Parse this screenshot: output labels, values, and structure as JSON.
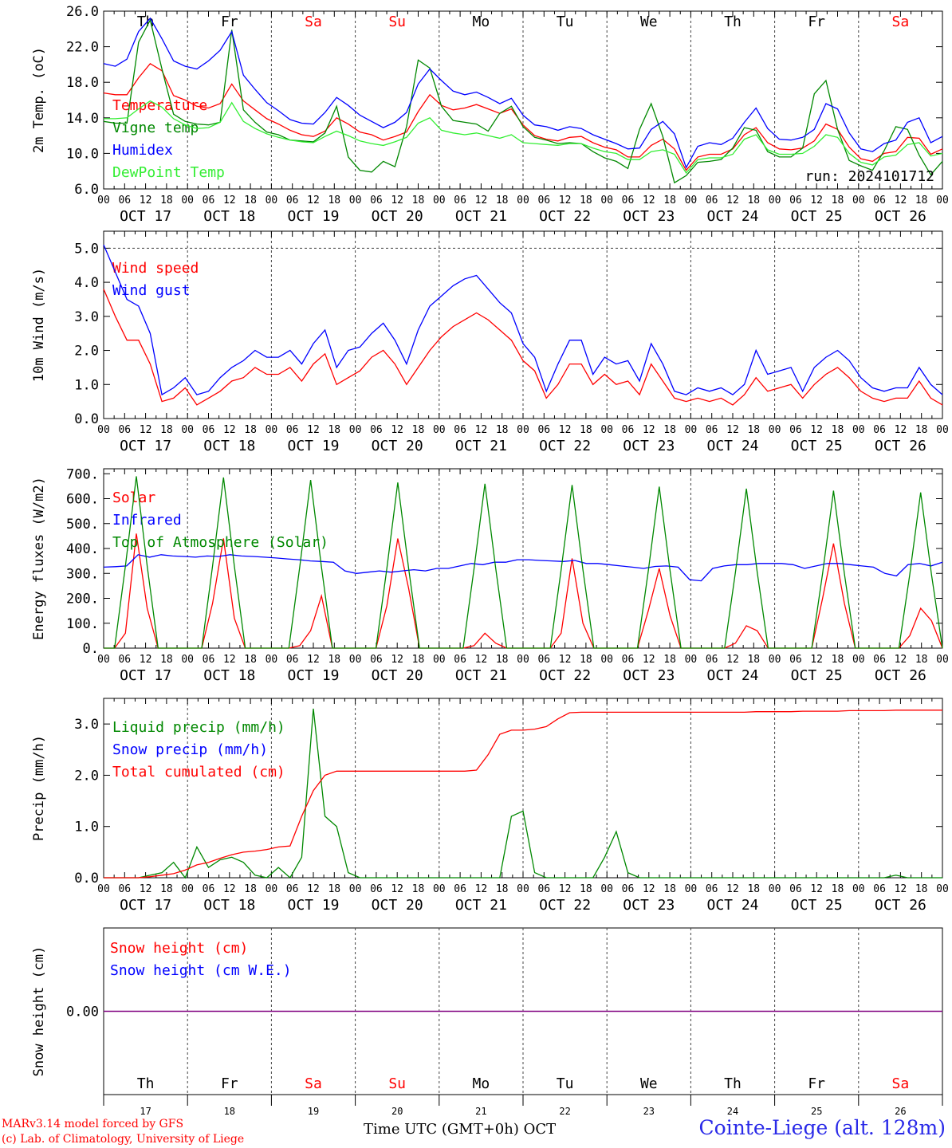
{
  "chart_data": [
    {
      "type": "line",
      "ylabel": "2m Temp. (oC)",
      "ylim": [
        6,
        26
      ],
      "yticks": [
        "26.0",
        "22.0",
        "18.0",
        "14.0",
        "10.0",
        "6.0"
      ],
      "day_names": [
        "Th",
        "Fr",
        "Sa",
        "Su",
        "Mo",
        "Tu",
        "We",
        "Th",
        "Fr",
        "Sa"
      ],
      "weekend_days": [
        2,
        3,
        9
      ],
      "x_hour_ticks": [
        "00",
        "06",
        "12",
        "18"
      ],
      "date_labels": [
        "OCT 17",
        "OCT 18",
        "OCT 19",
        "OCT 20",
        "OCT 21",
        "OCT 22",
        "OCT 23",
        "OCT 24",
        "OCT 25",
        "OCT 26"
      ],
      "annotation": "run: 2024101712",
      "x_step_hours": 3,
      "series": [
        {
          "name": "Temperature",
          "color": "#ff0000",
          "values": [
            16.8,
            16.6,
            16.6,
            18.5,
            20.1,
            19.3,
            16.5,
            16.0,
            15.3,
            15.1,
            15.6,
            17.8,
            15.9,
            14.9,
            13.9,
            13.3,
            12.6,
            12.1,
            11.9,
            12.5,
            14.0,
            13.3,
            12.4,
            12.1,
            11.5,
            11.9,
            12.4,
            14.7,
            16.6,
            15.4,
            14.9,
            15.1,
            15.5,
            15.0,
            14.5,
            15.0,
            13.2,
            12.0,
            11.6,
            11.4,
            11.8,
            11.9,
            11.2,
            10.7,
            10.4,
            9.6,
            9.6,
            10.9,
            11.6,
            10.5,
            8.1,
            9.6,
            9.9,
            9.9,
            10.5,
            12.1,
            12.9,
            11.2,
            10.5,
            10.4,
            10.6,
            11.4,
            13.3,
            12.7,
            10.7,
            9.4,
            9.1,
            10.0,
            10.2,
            11.8,
            11.7,
            9.9,
            10.5
          ]
        },
        {
          "name": "Vigne temp",
          "color": "#008800",
          "values": [
            13.6,
            13.4,
            13.4,
            22.5,
            25.0,
            19.5,
            14.4,
            13.6,
            13.3,
            13.2,
            13.5,
            23.9,
            14.9,
            13.5,
            12.4,
            12.1,
            11.5,
            11.4,
            11.3,
            12.3,
            15.3,
            9.6,
            8.1,
            7.9,
            9.1,
            8.5,
            13.0,
            20.5,
            19.6,
            15.3,
            13.7,
            13.5,
            13.3,
            12.5,
            14.5,
            15.3,
            13.0,
            11.8,
            11.5,
            11.1,
            11.2,
            11.1,
            10.2,
            9.5,
            9.1,
            8.3,
            12.7,
            15.6,
            11.9,
            6.7,
            7.5,
            9.0,
            9.1,
            9.3,
            10.6,
            12.9,
            12.6,
            10.2,
            9.6,
            9.6,
            10.6,
            16.7,
            18.2,
            12.7,
            9.2,
            8.6,
            8.1,
            10.3,
            13.0,
            12.7,
            9.8,
            7.6,
            9.1
          ]
        },
        {
          "name": "Humidex",
          "color": "#0000ff",
          "values": [
            20.1,
            19.8,
            20.6,
            23.7,
            25.2,
            22.9,
            20.4,
            19.8,
            19.5,
            20.4,
            21.6,
            23.7,
            18.8,
            17.2,
            15.7,
            14.8,
            13.8,
            13.4,
            13.3,
            14.6,
            16.3,
            15.4,
            14.3,
            13.6,
            12.9,
            13.5,
            14.6,
            17.8,
            19.5,
            18.2,
            17.0,
            16.6,
            16.9,
            16.3,
            15.6,
            16.2,
            14.3,
            13.2,
            13.0,
            12.6,
            13.0,
            12.8,
            12.1,
            11.6,
            11.1,
            10.5,
            10.6,
            12.7,
            13.6,
            12.2,
            8.4,
            10.8,
            11.2,
            11.0,
            11.7,
            13.5,
            15.1,
            12.8,
            11.6,
            11.5,
            11.8,
            12.7,
            15.6,
            15.0,
            12.3,
            10.5,
            10.2,
            11.1,
            11.5,
            13.5,
            14.0,
            11.2,
            11.9
          ]
        },
        {
          "name": "DewPoint Temp",
          "color": "#33ee33",
          "values": [
            13.9,
            13.9,
            14.0,
            15.0,
            15.9,
            15.2,
            13.9,
            13.2,
            12.8,
            12.9,
            13.5,
            15.7,
            13.6,
            12.8,
            12.2,
            11.8,
            11.5,
            11.3,
            11.2,
            11.9,
            12.5,
            12.0,
            11.4,
            11.1,
            10.9,
            11.3,
            11.8,
            13.4,
            14.0,
            12.6,
            12.3,
            12.1,
            12.3,
            12.0,
            11.7,
            12.1,
            11.2,
            11.1,
            11.0,
            10.9,
            11.1,
            11.1,
            10.6,
            10.2,
            10.0,
            9.3,
            9.3,
            10.2,
            10.4,
            9.9,
            7.8,
            9.3,
            9.5,
            9.5,
            9.9,
            11.6,
            12.1,
            10.4,
            9.9,
            9.9,
            10.0,
            10.8,
            12.1,
            11.8,
            10.0,
            9.0,
            8.7,
            9.6,
            9.8,
            11.0,
            11.2,
            9.7,
            10.0
          ]
        }
      ]
    },
    {
      "type": "line",
      "ylabel": "10m Wind (m/s)",
      "ylim": [
        0,
        5.5
      ],
      "yticks": [
        "5.0",
        "4.0",
        "3.0",
        "2.0",
        "1.0",
        "0.0"
      ],
      "x_hour_ticks": [
        "00",
        "06",
        "12",
        "18"
      ],
      "date_labels": [
        "OCT 17",
        "OCT 18",
        "OCT 19",
        "OCT 20",
        "OCT 21",
        "OCT 22",
        "OCT 23",
        "OCT 24",
        "OCT 25",
        "OCT 26"
      ],
      "x_step_hours": 3,
      "series": [
        {
          "name": "Wind speed",
          "color": "#ff0000",
          "values": [
            3.8,
            3.0,
            2.3,
            2.3,
            1.6,
            0.5,
            0.6,
            0.9,
            0.4,
            0.6,
            0.8,
            1.1,
            1.2,
            1.5,
            1.3,
            1.3,
            1.5,
            1.1,
            1.6,
            1.9,
            1.0,
            1.2,
            1.4,
            1.8,
            2.0,
            1.6,
            1.0,
            1.5,
            2.0,
            2.4,
            2.7,
            2.9,
            3.1,
            2.9,
            2.6,
            2.3,
            1.7,
            1.4,
            0.6,
            1.0,
            1.6,
            1.6,
            1.0,
            1.3,
            1.0,
            1.1,
            0.7,
            1.6,
            1.1,
            0.6,
            0.5,
            0.6,
            0.5,
            0.6,
            0.4,
            0.7,
            1.2,
            0.8,
            0.9,
            1.0,
            0.6,
            1.0,
            1.3,
            1.5,
            1.2,
            0.8,
            0.6,
            0.5,
            0.6,
            0.6,
            1.1,
            0.6,
            0.4
          ]
        },
        {
          "name": "Wind gust",
          "color": "#0000ff",
          "values": [
            5.1,
            4.3,
            3.5,
            3.3,
            2.5,
            0.7,
            0.9,
            1.2,
            0.7,
            0.8,
            1.2,
            1.5,
            1.7,
            2.0,
            1.8,
            1.8,
            2.0,
            1.6,
            2.2,
            2.6,
            1.5,
            2.0,
            2.1,
            2.5,
            2.8,
            2.3,
            1.6,
            2.6,
            3.3,
            3.6,
            3.9,
            4.1,
            4.2,
            3.8,
            3.4,
            3.1,
            2.2,
            1.8,
            0.8,
            1.6,
            2.3,
            2.3,
            1.3,
            1.8,
            1.6,
            1.7,
            1.1,
            2.2,
            1.6,
            0.8,
            0.7,
            0.9,
            0.8,
            0.9,
            0.7,
            1.0,
            2.0,
            1.3,
            1.4,
            1.5,
            0.8,
            1.5,
            1.8,
            2.0,
            1.7,
            1.2,
            0.9,
            0.8,
            0.9,
            0.9,
            1.5,
            1.0,
            0.7
          ]
        }
      ]
    },
    {
      "type": "line",
      "ylabel": "Energy fluxes (W/m2)",
      "ylim": [
        0,
        720
      ],
      "yticks": [
        "700.",
        "600.",
        "500.",
        "400.",
        "300.",
        "200.",
        "100.",
        "0."
      ],
      "x_hour_ticks": [
        "00",
        "06",
        "12",
        "18"
      ],
      "date_labels": [
        "OCT 17",
        "OCT 18",
        "OCT 19",
        "OCT 20",
        "OCT 21",
        "OCT 22",
        "OCT 23",
        "OCT 24",
        "OCT 25",
        "OCT 26"
      ],
      "x_step_hours": 3,
      "series": [
        {
          "name": "Solar",
          "color": "#ff0000",
          "values": [
            0,
            0,
            60,
            460,
            160,
            0,
            0,
            0,
            0,
            0,
            180,
            440,
            120,
            0,
            0,
            0,
            0,
            0,
            10,
            70,
            210,
            0,
            0,
            0,
            0,
            0,
            170,
            440,
            240,
            0,
            0,
            0,
            0,
            0,
            10,
            60,
            20,
            0,
            0,
            0,
            0,
            0,
            60,
            360,
            100,
            0,
            0,
            0,
            0,
            0,
            150,
            320,
            130,
            0,
            0,
            0,
            0,
            0,
            20,
            90,
            70,
            0,
            0,
            0,
            0,
            0,
            200,
            420,
            180,
            0,
            0,
            0,
            0,
            0,
            50,
            160,
            110,
            0
          ]
        },
        {
          "name": "Infrared",
          "color": "#0000ff",
          "values": [
            325,
            327,
            330,
            375,
            365,
            375,
            370,
            368,
            365,
            370,
            368,
            375,
            370,
            368,
            365,
            362,
            358,
            355,
            350,
            348,
            345,
            310,
            300,
            305,
            310,
            305,
            310,
            315,
            310,
            320,
            320,
            330,
            340,
            335,
            345,
            345,
            355,
            355,
            352,
            350,
            348,
            352,
            340,
            340,
            335,
            330,
            325,
            320,
            328,
            330,
            325,
            275,
            270,
            320,
            330,
            335,
            335,
            340,
            340,
            340,
            335,
            320,
            330,
            340,
            340,
            335,
            330,
            325,
            300,
            290,
            335,
            340,
            330,
            345
          ]
        },
        {
          "name": "Top of Atmosphere (Solar)",
          "color": "#008800",
          "values": [
            0,
            0,
            330,
            690,
            330,
            0,
            0,
            0,
            0,
            0,
            330,
            685,
            330,
            0,
            0,
            0,
            0,
            0,
            325,
            675,
            325,
            0,
            0,
            0,
            0,
            0,
            320,
            665,
            320,
            0,
            0,
            0,
            0,
            0,
            318,
            660,
            318,
            0,
            0,
            0,
            0,
            0,
            315,
            655,
            315,
            0,
            0,
            0,
            0,
            0,
            310,
            648,
            310,
            0,
            0,
            0,
            0,
            0,
            305,
            640,
            305,
            0,
            0,
            0,
            0,
            0,
            300,
            632,
            300,
            0,
            0,
            0,
            0,
            0,
            295,
            625,
            295,
            0
          ]
        }
      ]
    },
    {
      "type": "line",
      "ylabel": "Precip (mm/h)",
      "ylim": [
        0,
        3.5
      ],
      "yticks": [
        "3.0",
        "2.0",
        "1.0",
        "0.0"
      ],
      "x_hour_ticks": [
        "00",
        "06",
        "12",
        "18"
      ],
      "date_labels": [
        "OCT 17",
        "OCT 18",
        "OCT 19",
        "OCT 20",
        "OCT 21",
        "OCT 22",
        "OCT 23",
        "OCT 24",
        "OCT 25",
        "OCT 26"
      ],
      "x_step_hours": 3,
      "series": [
        {
          "name": "Liquid precip (mm/h)",
          "color": "#008800",
          "values": [
            0,
            0,
            0,
            0,
            0.05,
            0.1,
            0.3,
            0.0,
            0.6,
            0.2,
            0.35,
            0.4,
            0.3,
            0.05,
            0,
            0.2,
            0,
            0.4,
            3.3,
            1.2,
            1.0,
            0.1,
            0,
            0,
            0,
            0,
            0,
            0,
            0,
            0,
            0,
            0,
            0,
            0,
            0,
            1.2,
            1.3,
            0.1,
            0,
            0,
            0,
            0,
            0,
            0.4,
            0.9,
            0.1,
            0,
            0,
            0,
            0,
            0,
            0,
            0,
            0,
            0,
            0,
            0,
            0,
            0,
            0,
            0,
            0,
            0,
            0,
            0,
            0,
            0,
            0,
            0.05,
            0,
            0,
            0,
            0
          ]
        },
        {
          "name": "Snow precip (mm/h)",
          "color": "#0000ff",
          "values": []
        },
        {
          "name": "Total cumulated (cm)",
          "color": "#ff0000",
          "values": [
            0,
            0,
            0,
            0,
            0.02,
            0.05,
            0.08,
            0.15,
            0.25,
            0.3,
            0.38,
            0.45,
            0.5,
            0.52,
            0.55,
            0.6,
            0.62,
            1.2,
            1.7,
            2.0,
            2.08,
            2.08,
            2.08,
            2.08,
            2.08,
            2.08,
            2.08,
            2.08,
            2.08,
            2.08,
            2.08,
            2.08,
            2.1,
            2.4,
            2.8,
            2.88,
            2.88,
            2.9,
            2.95,
            3.1,
            3.22,
            3.23,
            3.23,
            3.23,
            3.23,
            3.23,
            3.23,
            3.23,
            3.23,
            3.23,
            3.23,
            3.23,
            3.23,
            3.23,
            3.23,
            3.23,
            3.24,
            3.24,
            3.24,
            3.24,
            3.25,
            3.25,
            3.25,
            3.25,
            3.26,
            3.26,
            3.26,
            3.26,
            3.27,
            3.27,
            3.27,
            3.27,
            3.27
          ]
        }
      ]
    },
    {
      "type": "line",
      "ylabel": "Snow height (cm)",
      "ylim": [
        -1,
        1
      ],
      "yticks": [
        "0.00"
      ],
      "day_names": [
        "Th",
        "Fr",
        "Sa",
        "Su",
        "Mo",
        "Tu",
        "We",
        "Th",
        "Fr",
        "Sa"
      ],
      "weekend_days": [
        2,
        3,
        9
      ],
      "day_numbers": [
        "17",
        "18",
        "19",
        "20",
        "21",
        "22",
        "23",
        "24",
        "25",
        "26"
      ],
      "xlabel": "Time UTC (GMT+0h)",
      "month": "OCT",
      "series": [
        {
          "name": "Snow height (cm)",
          "color": "#ff0000",
          "values": [
            0,
            0
          ]
        },
        {
          "name": "Snow height (cm W.E.)",
          "color": "#0000ff",
          "values": [
            0,
            0
          ]
        }
      ],
      "zero_line_color": "#800080"
    }
  ],
  "footer": {
    "model": "MARv3.14 model forced by GFS",
    "credit": "(c) Lab. of Climatology, University of Liege",
    "station": "Cointe-Liege (alt. 128m)"
  }
}
